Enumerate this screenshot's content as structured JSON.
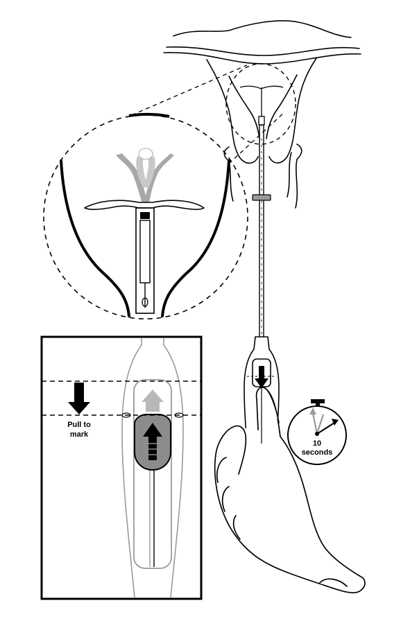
{
  "inset": {
    "instruction_line1": "Pull to",
    "instruction_line2": "mark"
  },
  "timer": {
    "number": "10",
    "unit": "seconds"
  },
  "colors": {
    "ink": "#000000",
    "gray": "#9a9a9a",
    "light_gray": "#c8c8c8",
    "slider_fill": "#8c8c8c",
    "background": "#ffffff"
  }
}
